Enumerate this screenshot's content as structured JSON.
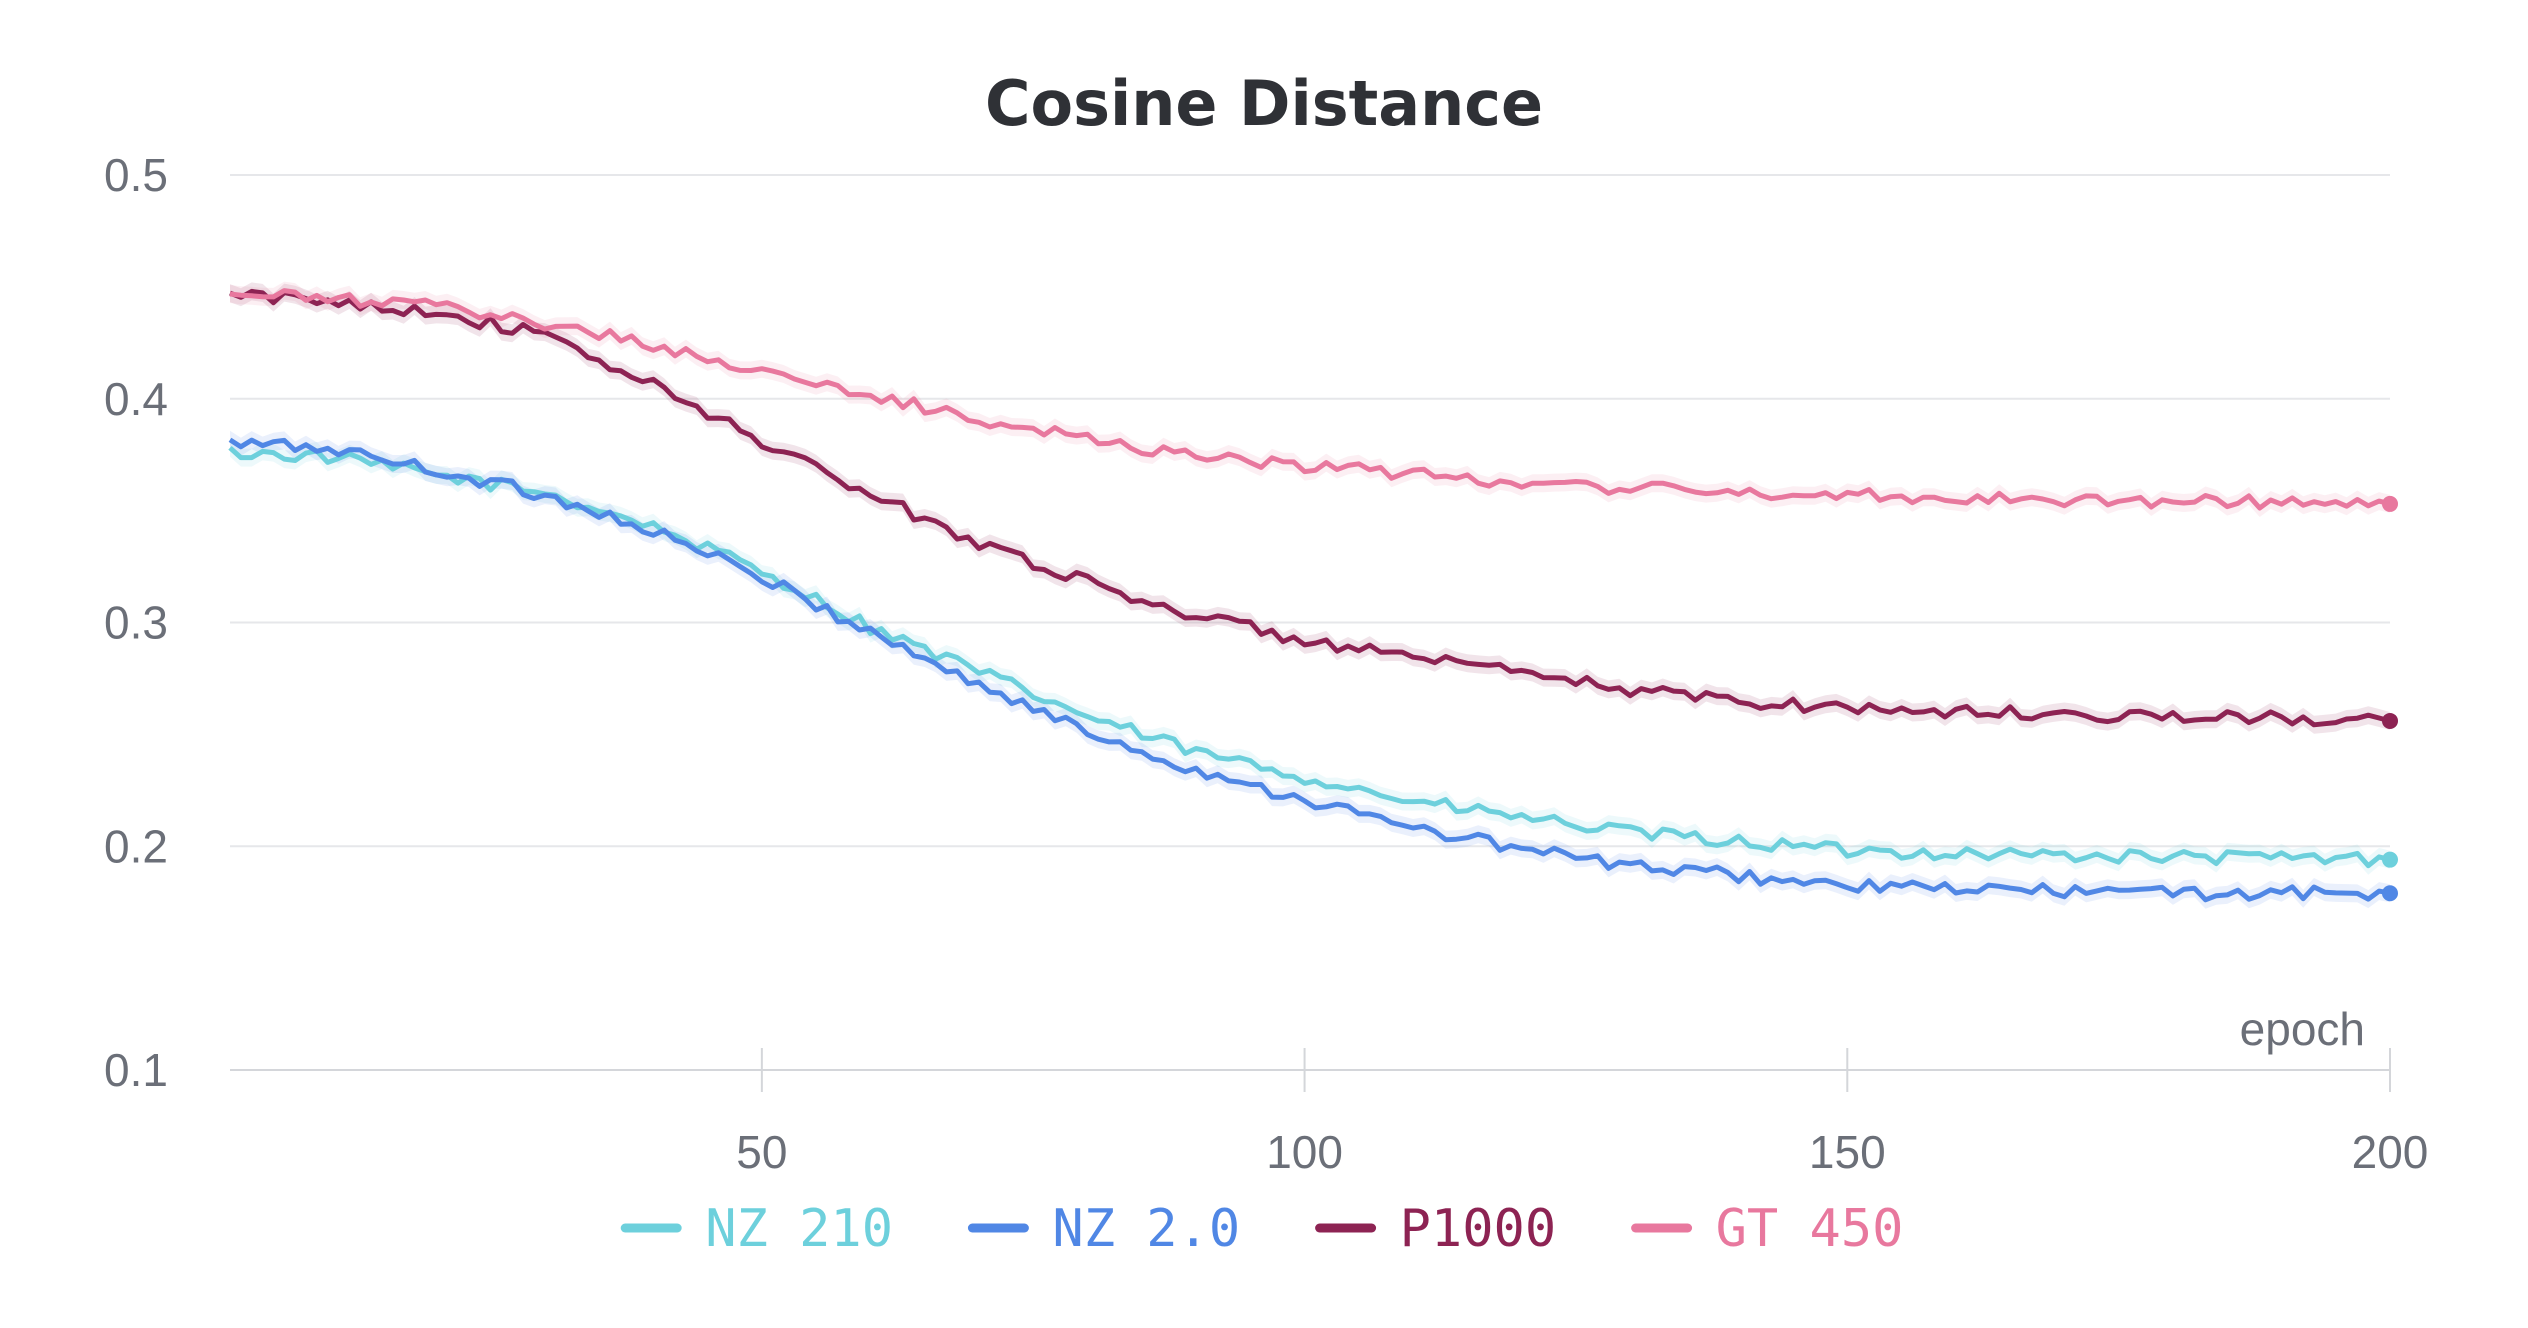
{
  "chart_data": {
    "type": "line",
    "title": "Cosine Distance",
    "xlabel": "epoch",
    "ylabel": "",
    "xlim": [
      1,
      200
    ],
    "ylim": [
      0.1,
      0.5
    ],
    "x_ticks": [
      "50",
      "100",
      "150",
      "200"
    ],
    "x_tick_values": [
      50,
      100,
      150,
      200
    ],
    "y_ticks": [
      "0.1",
      "0.2",
      "0.3",
      "0.4",
      "0.5"
    ],
    "y_tick_values": [
      0.1,
      0.2,
      0.3,
      0.4,
      0.5
    ],
    "grid": "horizontal",
    "legend_position": "bottom",
    "series": [
      {
        "name": "NZ 210",
        "color": "#6dd0dc",
        "x": [
          1,
          10,
          20,
          30,
          40,
          50,
          60,
          70,
          80,
          90,
          100,
          110,
          120,
          130,
          140,
          150,
          160,
          170,
          180,
          190,
          200
        ],
        "values": [
          0.376,
          0.374,
          0.366,
          0.358,
          0.343,
          0.323,
          0.298,
          0.278,
          0.258,
          0.242,
          0.231,
          0.22,
          0.213,
          0.206,
          0.202,
          0.198,
          0.197,
          0.196,
          0.195,
          0.195,
          0.194
        ]
      },
      {
        "name": "NZ 2.0",
        "color": "#5087e5",
        "x": [
          1,
          10,
          20,
          30,
          40,
          50,
          60,
          70,
          80,
          90,
          100,
          110,
          120,
          130,
          140,
          150,
          160,
          170,
          180,
          190,
          200
        ],
        "values": [
          0.38,
          0.378,
          0.368,
          0.357,
          0.341,
          0.32,
          0.296,
          0.272,
          0.251,
          0.234,
          0.221,
          0.208,
          0.199,
          0.191,
          0.187,
          0.182,
          0.181,
          0.18,
          0.179,
          0.179,
          0.179
        ]
      },
      {
        "name": "P1000",
        "color": "#8d2353",
        "x": [
          1,
          10,
          20,
          30,
          40,
          50,
          60,
          70,
          80,
          90,
          100,
          110,
          120,
          130,
          140,
          150,
          160,
          170,
          180,
          190,
          200
        ],
        "values": [
          0.446,
          0.444,
          0.439,
          0.428,
          0.406,
          0.381,
          0.357,
          0.336,
          0.318,
          0.303,
          0.292,
          0.284,
          0.277,
          0.27,
          0.265,
          0.262,
          0.26,
          0.259,
          0.258,
          0.257,
          0.256
        ]
      },
      {
        "name": "GT 450",
        "color": "#e8789e",
        "x": [
          1,
          10,
          20,
          30,
          40,
          50,
          60,
          70,
          80,
          90,
          100,
          110,
          120,
          130,
          140,
          150,
          160,
          170,
          180,
          190,
          200
        ],
        "values": [
          0.446,
          0.445,
          0.441,
          0.434,
          0.424,
          0.412,
          0.401,
          0.391,
          0.382,
          0.375,
          0.37,
          0.366,
          0.363,
          0.36,
          0.358,
          0.357,
          0.356,
          0.355,
          0.354,
          0.354,
          0.353
        ]
      }
    ]
  }
}
